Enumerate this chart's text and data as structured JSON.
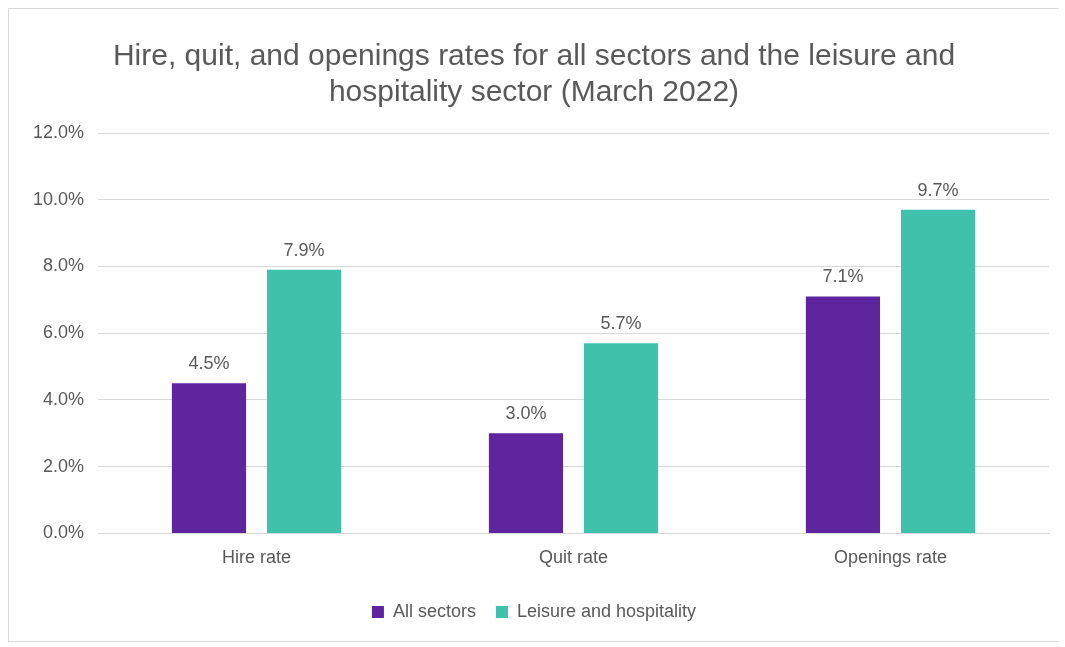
{
  "chart_data": {
    "type": "bar",
    "title": "Hire, quit, and openings rates for all sectors and the leisure and hospitality sector (March 2022)",
    "categories": [
      "Hire rate",
      "Quit rate",
      "Openings rate"
    ],
    "series": [
      {
        "name": "All sectors",
        "color": "#5f259f",
        "values": [
          4.5,
          3.0,
          7.1
        ],
        "value_labels": [
          "4.5%",
          "3.0%",
          "7.1%"
        ]
      },
      {
        "name": "Leisure and hospitality",
        "color": "#40c1ac",
        "values": [
          7.9,
          5.7,
          9.7
        ],
        "value_labels": [
          "7.9%",
          "5.7%",
          "9.7%"
        ]
      }
    ],
    "ylim": [
      0,
      12
    ],
    "yticks": [
      {
        "value": 0,
        "label": "0.0%"
      },
      {
        "value": 2,
        "label": "2.0%"
      },
      {
        "value": 4,
        "label": "4.0%"
      },
      {
        "value": 6,
        "label": "6.0%"
      },
      {
        "value": 8,
        "label": "8.0%"
      },
      {
        "value": 10,
        "label": "10.0%"
      },
      {
        "value": 12,
        "label": "12.0%"
      }
    ],
    "grid": "y",
    "legend": "bottom"
  }
}
